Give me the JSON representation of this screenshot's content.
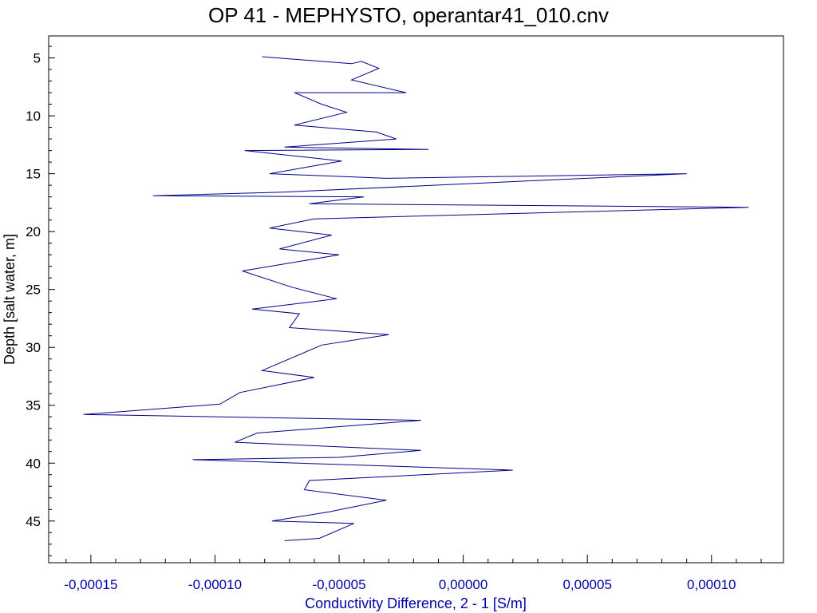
{
  "chart_data": {
    "type": "line",
    "title": "OP 41 - MEPHYSTO, operantar41_010.cnv",
    "xlabel": "Conductivity Difference, 2 - 1 [S/m]",
    "ylabel": "Depth [salt water, m]",
    "xlim": [
      -0.000167,
      0.000129
    ],
    "ylim": [
      48.6,
      3.1
    ],
    "y_inverted": true,
    "grid": false,
    "legend": "none",
    "x_ticks": [
      "-0,00015",
      "-0,00010",
      "-0,00005",
      "0,00000",
      "0,00005",
      "0,00010"
    ],
    "x_tick_values": [
      -0.00015,
      -0.0001,
      -5e-05,
      0,
      5e-05,
      0.0001
    ],
    "y_ticks": [
      "5",
      "10",
      "15",
      "20",
      "25",
      "30",
      "35",
      "40",
      "45"
    ],
    "y_tick_values": [
      5,
      10,
      15,
      20,
      25,
      30,
      35,
      40,
      45
    ],
    "series": [
      {
        "color": "#00008B",
        "points": [
          [
            -8.1e-05,
            4.9
          ],
          [
            -4.5e-05,
            5.5
          ],
          [
            -4.1e-05,
            5.3
          ],
          [
            -3.4e-05,
            5.9
          ],
          [
            -4.5e-05,
            6.9
          ],
          [
            -2.3e-05,
            8.0
          ],
          [
            -6.8e-05,
            8.0
          ],
          [
            -5.7e-05,
            9.0
          ],
          [
            -4.7e-05,
            9.7
          ],
          [
            -6.8e-05,
            10.8
          ],
          [
            -3.5e-05,
            11.4
          ],
          [
            -2.7e-05,
            12.0
          ],
          [
            -7.2e-05,
            12.7
          ],
          [
            -1.4e-05,
            12.9
          ],
          [
            -8.8e-05,
            13.0
          ],
          [
            -4.9e-05,
            13.9
          ],
          [
            -7.8e-05,
            15.0
          ],
          [
            -3.1e-05,
            15.4
          ],
          [
            9e-05,
            15.0
          ],
          [
            -7.3e-05,
            16.6
          ],
          [
            -0.000125,
            16.9
          ],
          [
            -4e-05,
            17.0
          ],
          [
            -6.2e-05,
            17.6
          ],
          [
            0.000115,
            17.9
          ],
          [
            -6e-05,
            18.9
          ],
          [
            -7.8e-05,
            19.7
          ],
          [
            -5.3e-05,
            20.3
          ],
          [
            -7.4e-05,
            21.5
          ],
          [
            -5e-05,
            22.0
          ],
          [
            -8.9e-05,
            23.4
          ],
          [
            -6.9e-05,
            24.8
          ],
          [
            -5.1e-05,
            25.8
          ],
          [
            -8.5e-05,
            26.7
          ],
          [
            -6.6e-05,
            27.1
          ],
          [
            -7e-05,
            28.3
          ],
          [
            -3e-05,
            28.9
          ],
          [
            -5.7e-05,
            29.8
          ],
          [
            -8.1e-05,
            32.0
          ],
          [
            -6e-05,
            32.6
          ],
          [
            -9e-05,
            33.9
          ],
          [
            -9.8e-05,
            34.9
          ],
          [
            -0.000153,
            35.8
          ],
          [
            -1.7e-05,
            36.3
          ],
          [
            -8.3e-05,
            37.4
          ],
          [
            -9.2e-05,
            38.2
          ],
          [
            -1.7e-05,
            38.9
          ],
          [
            -5e-05,
            39.5
          ],
          [
            -0.000109,
            39.7
          ],
          [
            2e-05,
            40.6
          ],
          [
            -6.2e-05,
            41.5
          ],
          [
            -6.4e-05,
            42.3
          ],
          [
            -3.1e-05,
            43.2
          ],
          [
            -5.4e-05,
            44.2
          ],
          [
            -7.7e-05,
            45.0
          ],
          [
            -4.4e-05,
            45.2
          ],
          [
            -5.8e-05,
            46.5
          ],
          [
            -7.2e-05,
            46.7
          ]
        ]
      }
    ]
  }
}
